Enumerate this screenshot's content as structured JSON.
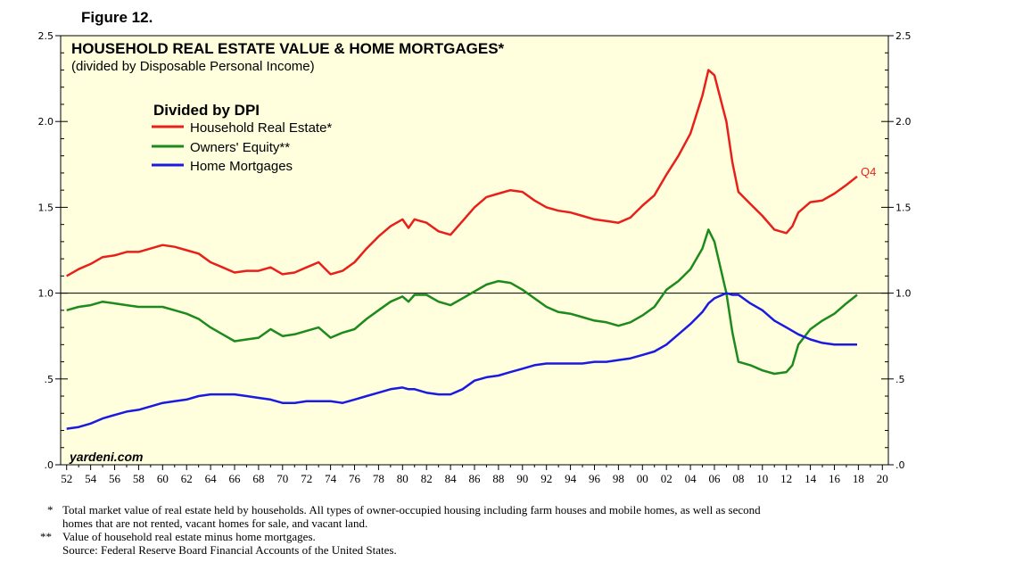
{
  "figure_label": "Figure 12.",
  "chart_data": {
    "type": "line",
    "title": "HOUSEHOLD REAL ESTATE VALUE & HOME MORTGAGES*",
    "subtitle": "(divided by Disposable Personal Income)",
    "legend_title": "Divided by DPI",
    "legend_position": "top-left",
    "watermark": "yardeni.com",
    "xlim": [
      1951.5,
      2020.5
    ],
    "ylim": [
      0,
      2.5
    ],
    "x_tick_labels": [
      "52",
      "54",
      "56",
      "58",
      "60",
      "62",
      "64",
      "66",
      "68",
      "70",
      "72",
      "74",
      "76",
      "78",
      "80",
      "82",
      "84",
      "86",
      "88",
      "90",
      "92",
      "94",
      "96",
      "98",
      "00",
      "02",
      "04",
      "06",
      "08",
      "10",
      "12",
      "14",
      "16",
      "18",
      "20"
    ],
    "x_tick_years": [
      1952,
      1954,
      1956,
      1958,
      1960,
      1962,
      1964,
      1966,
      1968,
      1970,
      1972,
      1974,
      1976,
      1978,
      1980,
      1982,
      1984,
      1986,
      1988,
      1990,
      1992,
      1994,
      1996,
      1998,
      2000,
      2002,
      2004,
      2006,
      2008,
      2010,
      2012,
      2014,
      2016,
      2018,
      2020
    ],
    "y_ticks": [
      0,
      0.5,
      1.0,
      1.5,
      2.0,
      2.5
    ],
    "y_tick_labels": [
      ".0",
      ".5",
      "1.0",
      "1.5",
      "2.0",
      "2.5"
    ],
    "reference_line": 1.0,
    "end_annotation": "Q4",
    "series": [
      {
        "name": "Household Real Estate*",
        "color": "#e8201c",
        "x": [
          1952,
          1953,
          1954,
          1955,
          1956,
          1957,
          1958,
          1959,
          1960,
          1961,
          1962,
          1963,
          1964,
          1965,
          1966,
          1967,
          1968,
          1969,
          1970,
          1971,
          1972,
          1973,
          1974,
          1975,
          1976,
          1977,
          1978,
          1979,
          1980,
          1980.5,
          1981,
          1982,
          1983,
          1984,
          1985,
          1986,
          1987,
          1988,
          1989,
          1990,
          1991,
          1992,
          1993,
          1994,
          1995,
          1996,
          1997,
          1998,
          1999,
          2000,
          2001,
          2002,
          2003,
          2004,
          2005,
          2005.5,
          2006,
          2007,
          2007.5,
          2008,
          2009,
          2010,
          2011,
          2012,
          2012.5,
          2013,
          2014,
          2015,
          2016,
          2017,
          2017.9
        ],
        "values": [
          1.1,
          1.14,
          1.17,
          1.21,
          1.22,
          1.24,
          1.24,
          1.26,
          1.28,
          1.27,
          1.25,
          1.23,
          1.18,
          1.15,
          1.12,
          1.13,
          1.13,
          1.15,
          1.11,
          1.12,
          1.15,
          1.18,
          1.11,
          1.13,
          1.18,
          1.26,
          1.33,
          1.39,
          1.43,
          1.38,
          1.43,
          1.41,
          1.36,
          1.34,
          1.42,
          1.5,
          1.56,
          1.58,
          1.6,
          1.59,
          1.54,
          1.5,
          1.48,
          1.47,
          1.45,
          1.43,
          1.42,
          1.41,
          1.44,
          1.51,
          1.57,
          1.69,
          1.8,
          1.93,
          2.15,
          2.3,
          2.27,
          2.0,
          1.76,
          1.59,
          1.52,
          1.45,
          1.37,
          1.35,
          1.39,
          1.47,
          1.53,
          1.54,
          1.58,
          1.63,
          1.68
        ]
      },
      {
        "name": "Owners' Equity**",
        "color": "#1d8a1d",
        "x": [
          1952,
          1953,
          1954,
          1955,
          1956,
          1957,
          1958,
          1959,
          1960,
          1961,
          1962,
          1963,
          1964,
          1965,
          1966,
          1967,
          1968,
          1969,
          1970,
          1971,
          1972,
          1973,
          1974,
          1975,
          1976,
          1977,
          1978,
          1979,
          1980,
          1980.5,
          1981,
          1982,
          1983,
          1984,
          1985,
          1986,
          1987,
          1988,
          1989,
          1990,
          1991,
          1992,
          1993,
          1994,
          1995,
          1996,
          1997,
          1998,
          1999,
          2000,
          2001,
          2002,
          2003,
          2004,
          2005,
          2005.5,
          2006,
          2007,
          2007.5,
          2008,
          2009,
          2010,
          2011,
          2012,
          2012.5,
          2013,
          2014,
          2015,
          2016,
          2017,
          2017.9
        ],
        "values": [
          0.9,
          0.92,
          0.93,
          0.95,
          0.94,
          0.93,
          0.92,
          0.92,
          0.92,
          0.9,
          0.88,
          0.85,
          0.8,
          0.76,
          0.72,
          0.73,
          0.74,
          0.79,
          0.75,
          0.76,
          0.78,
          0.8,
          0.74,
          0.77,
          0.79,
          0.85,
          0.9,
          0.95,
          0.98,
          0.95,
          0.99,
          0.99,
          0.95,
          0.93,
          0.97,
          1.01,
          1.05,
          1.07,
          1.06,
          1.02,
          0.97,
          0.92,
          0.89,
          0.88,
          0.86,
          0.84,
          0.83,
          0.81,
          0.83,
          0.87,
          0.92,
          1.02,
          1.07,
          1.14,
          1.26,
          1.37,
          1.3,
          1.0,
          0.77,
          0.6,
          0.58,
          0.55,
          0.53,
          0.54,
          0.58,
          0.7,
          0.79,
          0.84,
          0.88,
          0.94,
          0.99
        ]
      },
      {
        "name": "Home Mortgages",
        "color": "#1a1ae0",
        "x": [
          1952,
          1953,
          1954,
          1955,
          1956,
          1957,
          1958,
          1959,
          1960,
          1961,
          1962,
          1963,
          1964,
          1965,
          1966,
          1967,
          1968,
          1969,
          1970,
          1971,
          1972,
          1973,
          1974,
          1975,
          1976,
          1977,
          1978,
          1979,
          1980,
          1980.5,
          1981,
          1982,
          1983,
          1984,
          1985,
          1986,
          1987,
          1988,
          1989,
          1990,
          1991,
          1992,
          1993,
          1994,
          1995,
          1996,
          1997,
          1998,
          1999,
          2000,
          2001,
          2002,
          2003,
          2004,
          2005,
          2005.5,
          2006,
          2007,
          2007.5,
          2008,
          2009,
          2010,
          2011,
          2012,
          2012.5,
          2013,
          2014,
          2015,
          2016,
          2017,
          2017.9
        ],
        "values": [
          0.21,
          0.22,
          0.24,
          0.27,
          0.29,
          0.31,
          0.32,
          0.34,
          0.36,
          0.37,
          0.38,
          0.4,
          0.41,
          0.41,
          0.41,
          0.4,
          0.39,
          0.38,
          0.36,
          0.36,
          0.37,
          0.37,
          0.37,
          0.36,
          0.38,
          0.4,
          0.42,
          0.44,
          0.45,
          0.44,
          0.44,
          0.42,
          0.41,
          0.41,
          0.44,
          0.49,
          0.51,
          0.52,
          0.54,
          0.56,
          0.58,
          0.59,
          0.59,
          0.59,
          0.59,
          0.6,
          0.6,
          0.61,
          0.62,
          0.64,
          0.66,
          0.7,
          0.76,
          0.82,
          0.89,
          0.94,
          0.97,
          1.0,
          0.99,
          0.99,
          0.94,
          0.9,
          0.84,
          0.8,
          0.78,
          0.76,
          0.73,
          0.71,
          0.7,
          0.7,
          0.7
        ]
      }
    ]
  },
  "footnotes": {
    "line1_marker": "*",
    "line1": "Total market value of real estate held by households. All types of owner-occupied housing including farm houses and mobile homes, as well as second",
    "line2": "homes that are not rented, vacant homes for sale, and vacant land.",
    "line3_marker": "**",
    "line3": "Value of household real estate minus home mortgages.",
    "source": "Source: Federal Reserve Board Financial Accounts of the United States."
  }
}
